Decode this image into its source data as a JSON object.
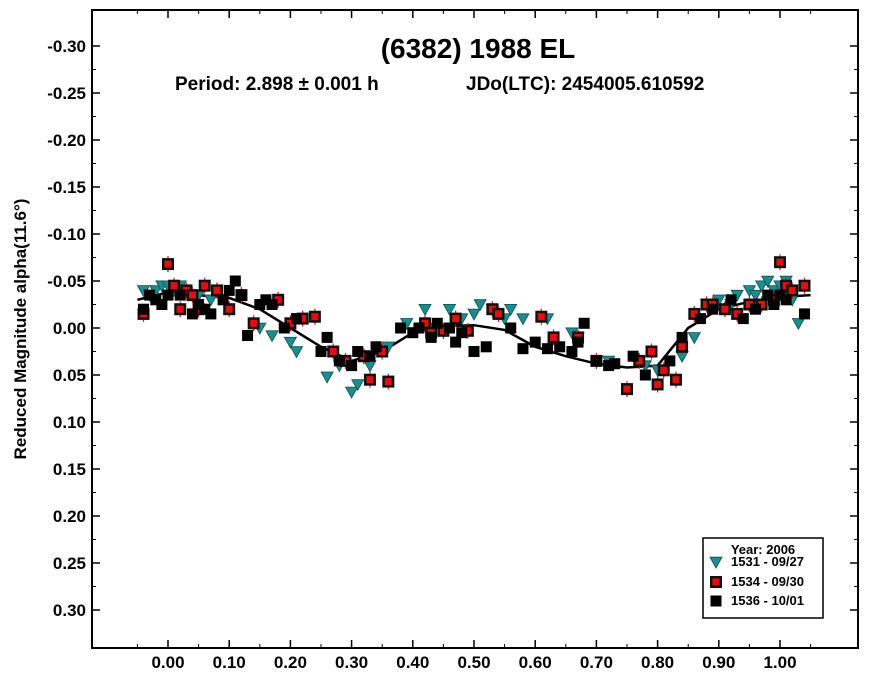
{
  "chart_data": {
    "type": "scatter",
    "title": "(6382) 1988 EL",
    "subtitle": {
      "period": "Period: 2.898 ± 0.001 h",
      "epoch": "JDo(LTC): 2454005.610592"
    },
    "xlabel": "",
    "ylabel": "Reduced Magnitude alpha(11.6°)",
    "xlim": [
      -0.1,
      1.12
    ],
    "ylim": [
      0.345,
      -0.345
    ],
    "y_inverted": true,
    "grid": false,
    "xticks": [
      0.0,
      0.1,
      0.2,
      0.3,
      0.4,
      0.5,
      0.6,
      0.7,
      0.8,
      0.9,
      1.0
    ],
    "xtick_labels": [
      "0.00",
      "0.10",
      "0.20",
      "0.30",
      "0.40",
      "0.50",
      "0.60",
      "0.70",
      "0.80",
      "0.90",
      "1.00"
    ],
    "yticks": [
      -0.3,
      -0.25,
      -0.2,
      -0.15,
      -0.1,
      -0.05,
      0.0,
      0.05,
      0.1,
      0.15,
      0.2,
      0.25,
      0.3
    ],
    "ytick_labels": [
      "-0.30",
      "-0.25",
      "-0.20",
      "-0.15",
      "-0.10",
      "-0.05",
      "0.00",
      "0.05",
      "0.10",
      "0.15",
      "0.20",
      "0.25",
      "0.30"
    ],
    "legend": {
      "placement": "bottom-right",
      "title": "Year: 2006",
      "entries": [
        "1531 - 09/27",
        "1534 - 09/30",
        "1536 - 10/01"
      ]
    },
    "colors": {
      "series_1531": "#1e8c8c",
      "series_1534": "#e01010",
      "series_1536": "#000000",
      "fit": "#000000"
    },
    "fit_curve": {
      "x": [
        -0.05,
        0.0,
        0.05,
        0.1,
        0.15,
        0.2,
        0.25,
        0.3,
        0.35,
        0.4,
        0.45,
        0.5,
        0.55,
        0.6,
        0.65,
        0.7,
        0.75,
        0.8,
        0.85,
        0.9,
        0.95,
        1.0,
        1.05
      ],
      "y": [
        -0.03,
        -0.038,
        -0.035,
        -0.032,
        -0.02,
        0.0,
        0.02,
        0.035,
        0.025,
        0.005,
        -0.002,
        -0.003,
        0.002,
        0.02,
        0.03,
        0.038,
        0.042,
        0.04,
        0.0,
        -0.02,
        -0.028,
        -0.033,
        -0.035
      ]
    },
    "series": [
      {
        "name": "1531 - 09/27",
        "marker": "triangle-down",
        "x": [
          -0.04,
          -0.03,
          -0.02,
          -0.01,
          0.0,
          0.01,
          0.02,
          0.03,
          0.05,
          0.07,
          0.15,
          0.17,
          0.2,
          0.21,
          0.26,
          0.28,
          0.3,
          0.31,
          0.33,
          0.36,
          0.39,
          0.42,
          0.43,
          0.46,
          0.48,
          0.5,
          0.51,
          0.53,
          0.55,
          0.56,
          0.58,
          0.62,
          0.66,
          0.67,
          0.72,
          0.78,
          0.8,
          0.84,
          0.86,
          0.88,
          0.9,
          0.91,
          0.92,
          0.93,
          0.95,
          0.96,
          0.97,
          0.98,
          0.99,
          1.0,
          1.01,
          1.02,
          1.03
        ],
        "y": [
          -0.04,
          -0.035,
          -0.04,
          -0.045,
          -0.045,
          -0.04,
          -0.045,
          -0.04,
          -0.035,
          -0.03,
          0.0,
          0.008,
          0.015,
          0.025,
          0.052,
          0.04,
          0.068,
          0.06,
          0.04,
          0.02,
          -0.005,
          -0.02,
          0.0,
          -0.02,
          -0.01,
          -0.015,
          -0.025,
          -0.02,
          -0.01,
          -0.02,
          -0.01,
          -0.01,
          0.005,
          0.01,
          0.035,
          0.04,
          0.045,
          0.03,
          0.01,
          -0.025,
          -0.03,
          -0.02,
          -0.025,
          -0.035,
          -0.04,
          -0.035,
          -0.045,
          -0.05,
          -0.04,
          -0.045,
          -0.05,
          -0.03,
          -0.005
        ]
      },
      {
        "name": "1534 - 09/30",
        "marker": "square",
        "x": [
          -0.04,
          0.0,
          0.01,
          0.02,
          0.03,
          0.04,
          0.05,
          0.06,
          0.08,
          0.1,
          0.12,
          0.14,
          0.18,
          0.2,
          0.22,
          0.24,
          0.27,
          0.29,
          0.32,
          0.33,
          0.35,
          0.36,
          0.42,
          0.43,
          0.45,
          0.47,
          0.49,
          0.53,
          0.54,
          0.61,
          0.63,
          0.67,
          0.7,
          0.75,
          0.77,
          0.79,
          0.8,
          0.81,
          0.83,
          0.84,
          0.86,
          0.88,
          0.89,
          0.91,
          0.93,
          0.95,
          0.97,
          0.99,
          1.0,
          1.01,
          1.02,
          1.04
        ],
        "y": [
          -0.015,
          -0.068,
          -0.045,
          -0.02,
          -0.04,
          -0.035,
          -0.02,
          -0.045,
          -0.04,
          -0.02,
          -0.035,
          -0.005,
          -0.03,
          -0.005,
          -0.01,
          -0.012,
          0.025,
          0.035,
          0.03,
          0.055,
          0.025,
          0.057,
          -0.005,
          0.005,
          0.003,
          -0.01,
          0.003,
          -0.02,
          -0.015,
          -0.012,
          0.01,
          0.01,
          0.035,
          0.065,
          0.035,
          0.025,
          0.06,
          0.045,
          0.055,
          0.02,
          -0.015,
          -0.025,
          -0.025,
          -0.02,
          -0.015,
          -0.025,
          -0.025,
          -0.03,
          -0.07,
          -0.045,
          -0.04,
          -0.045
        ]
      },
      {
        "name": "1536 - 10/01",
        "marker": "square",
        "x": [
          -0.04,
          -0.03,
          -0.02,
          -0.01,
          0.0,
          0.02,
          0.04,
          0.05,
          0.06,
          0.07,
          0.09,
          0.1,
          0.11,
          0.12,
          0.13,
          0.15,
          0.16,
          0.17,
          0.19,
          0.21,
          0.25,
          0.26,
          0.28,
          0.3,
          0.31,
          0.33,
          0.34,
          0.38,
          0.4,
          0.41,
          0.43,
          0.44,
          0.46,
          0.47,
          0.48,
          0.5,
          0.52,
          0.56,
          0.58,
          0.6,
          0.62,
          0.64,
          0.66,
          0.67,
          0.68,
          0.7,
          0.72,
          0.73,
          0.76,
          0.78,
          0.82,
          0.84,
          0.87,
          0.89,
          0.92,
          0.94,
          0.96,
          0.98,
          0.99,
          1.0,
          1.01,
          1.04
        ],
        "y": [
          -0.02,
          -0.035,
          -0.03,
          -0.025,
          -0.035,
          -0.035,
          -0.015,
          -0.025,
          -0.02,
          -0.015,
          -0.03,
          -0.04,
          -0.05,
          -0.035,
          0.008,
          -0.025,
          -0.03,
          -0.025,
          0.0,
          -0.01,
          0.025,
          0.01,
          0.035,
          0.04,
          0.025,
          0.03,
          0.02,
          0.0,
          0.005,
          0.0,
          0.01,
          -0.005,
          0.0,
          0.015,
          0.005,
          0.025,
          0.02,
          0.0,
          0.022,
          0.015,
          0.022,
          0.02,
          0.025,
          0.015,
          -0.005,
          0.035,
          0.04,
          0.038,
          0.03,
          0.05,
          0.035,
          0.01,
          -0.01,
          -0.02,
          -0.03,
          -0.01,
          -0.02,
          -0.035,
          -0.025,
          -0.035,
          -0.03,
          -0.015
        ]
      }
    ]
  }
}
